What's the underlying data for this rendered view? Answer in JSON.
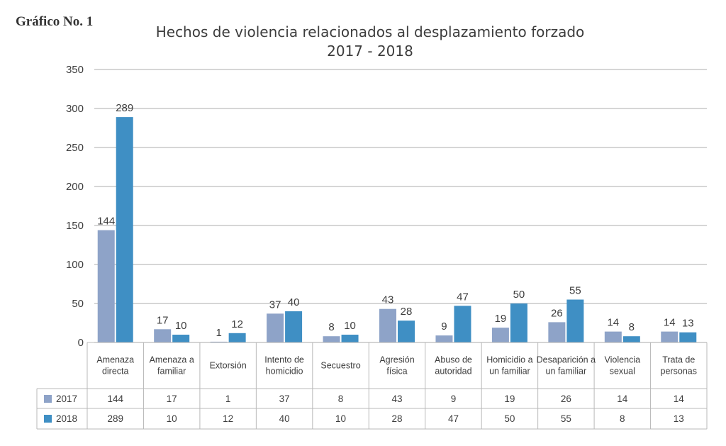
{
  "figure_label": "Gráfico No. 1",
  "chart_data": {
    "type": "bar",
    "title": "Hechos de violencia relacionados al desplazamiento forzado",
    "subtitle": "2017 - 2018",
    "categories": [
      [
        "Amenaza",
        "directa"
      ],
      [
        "Amenaza a",
        "familiar"
      ],
      [
        "Extorsión"
      ],
      [
        "Intento de",
        "homicidio"
      ],
      [
        "Secuestro"
      ],
      [
        "Agresión",
        "física"
      ],
      [
        "Abuso de",
        "autoridad"
      ],
      [
        "Homicidio a",
        "un familiar"
      ],
      [
        "Desaparición a",
        "un familiar"
      ],
      [
        "Violencia",
        "sexual"
      ],
      [
        "Trata de",
        "personas"
      ]
    ],
    "series": [
      {
        "name": "2017",
        "color": "#8ea3c8",
        "values": [
          144,
          17,
          1,
          37,
          8,
          43,
          9,
          19,
          26,
          14,
          14
        ]
      },
      {
        "name": "2018",
        "color": "#3f8fc4",
        "values": [
          289,
          10,
          12,
          40,
          10,
          28,
          47,
          50,
          55,
          8,
          13
        ]
      }
    ],
    "yticks": [
      0,
      50,
      100,
      150,
      200,
      250,
      300,
      350
    ],
    "ylim": [
      0,
      350
    ],
    "xlabel": "",
    "ylabel": "",
    "grid": true,
    "data_table": true
  }
}
